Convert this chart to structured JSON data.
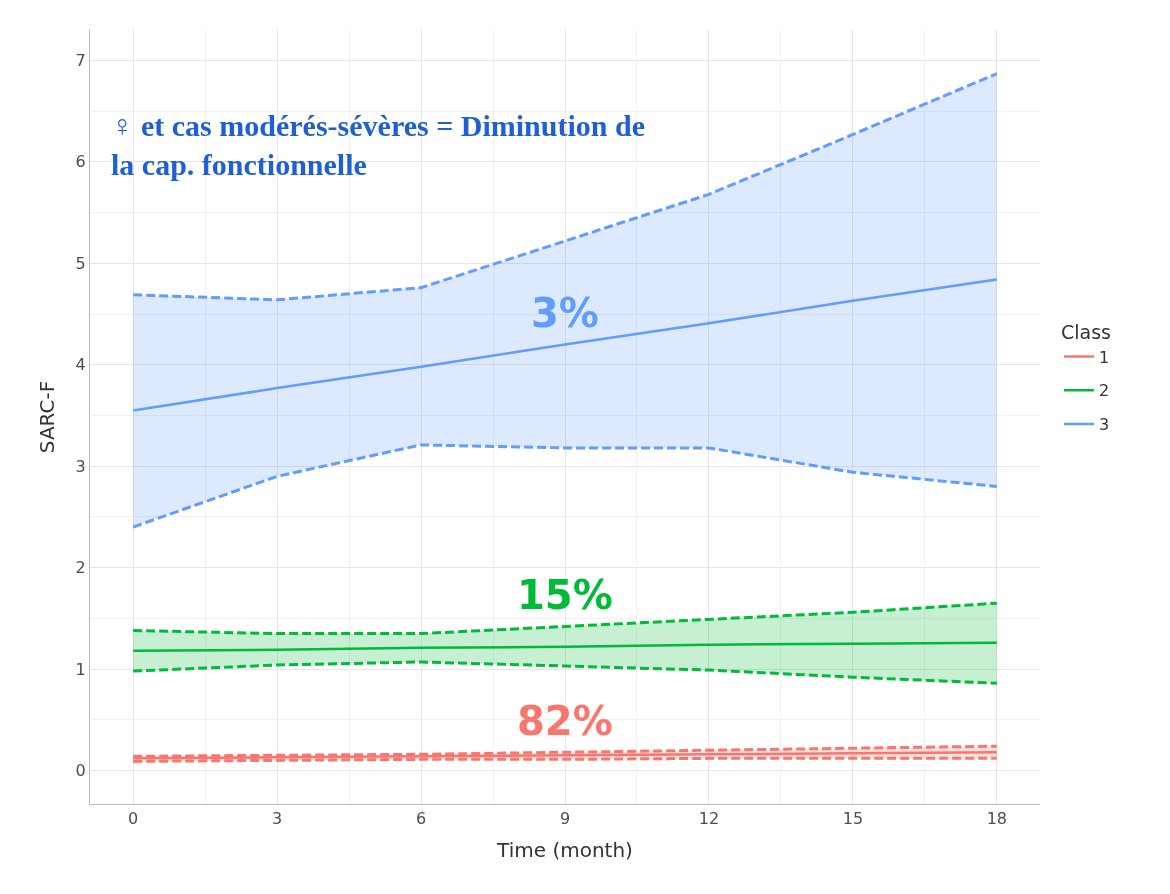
{
  "chart_data": {
    "type": "line",
    "xlabel": "Time (month)",
    "ylabel": "SARC-F",
    "legend_title": "Class",
    "legend": "right",
    "grid": true,
    "x": [
      0,
      3,
      6,
      9,
      12,
      15,
      18
    ],
    "series": [
      {
        "name": "1",
        "color": "#f8766d",
        "values": [
          0.12,
          0.13,
          0.14,
          0.15,
          0.16,
          0.17,
          0.18
        ],
        "lower": [
          0.09,
          0.1,
          0.11,
          0.11,
          0.12,
          0.12,
          0.12
        ],
        "upper": [
          0.14,
          0.15,
          0.16,
          0.18,
          0.2,
          0.22,
          0.24
        ]
      },
      {
        "name": "2",
        "color": "#00ba38",
        "values": [
          1.18,
          1.19,
          1.21,
          1.22,
          1.24,
          1.25,
          1.26
        ],
        "lower": [
          0.98,
          1.04,
          1.07,
          1.03,
          0.99,
          0.92,
          0.86
        ],
        "upper": [
          1.38,
          1.35,
          1.35,
          1.42,
          1.49,
          1.56,
          1.65
        ]
      },
      {
        "name": "3",
        "color": "#619cff",
        "values": [
          3.55,
          3.77,
          3.98,
          4.2,
          4.41,
          4.63,
          4.84
        ],
        "lower": [
          2.4,
          2.9,
          3.21,
          3.18,
          3.18,
          2.94,
          2.8
        ],
        "upper": [
          4.69,
          4.64,
          4.76,
          5.22,
          5.68,
          6.27,
          6.87
        ]
      },
      {
        "color": "#f8766d",
        "line_style": "dashed",
        "values": [
          0.09,
          0.1,
          0.11,
          0.11,
          0.12,
          0.12,
          0.12
        ]
      },
      {
        "color": "#f8766d",
        "line_style": "dashed",
        "values": [
          0.14,
          0.15,
          0.16,
          0.18,
          0.2,
          0.22,
          0.24
        ]
      },
      {
        "color": "#00ba38",
        "line_style": "dashed",
        "values": [
          0.98,
          1.04,
          1.07,
          1.03,
          0.99,
          0.92,
          0.86
        ]
      },
      {
        "color": "#00ba38",
        "line_style": "dashed",
        "values": [
          1.38,
          1.35,
          1.35,
          1.42,
          1.49,
          1.56,
          1.65
        ]
      },
      {
        "color": "#619cff",
        "line_style": "dashed",
        "values": [
          2.4,
          2.9,
          3.21,
          3.18,
          3.18,
          2.94,
          2.8
        ]
      },
      {
        "color": "#619cff",
        "line_style": "dashed",
        "values": [
          4.69,
          4.64,
          4.76,
          5.22,
          5.68,
          6.27,
          6.87
        ]
      }
    ],
    "xlim": [
      -0.9,
      18.9
    ],
    "xticks": [
      0,
      3,
      6,
      9,
      12,
      15,
      18
    ],
    "ylim": [
      -0.33,
      7.3
    ],
    "yticks": [
      0,
      1,
      2,
      3,
      4,
      5,
      6,
      7
    ],
    "annotations": [
      "82%",
      "15%",
      "3%",
      "♀ et cas modérés-sévères = Diminution de\nla cap. fonctionnelle"
    ]
  }
}
